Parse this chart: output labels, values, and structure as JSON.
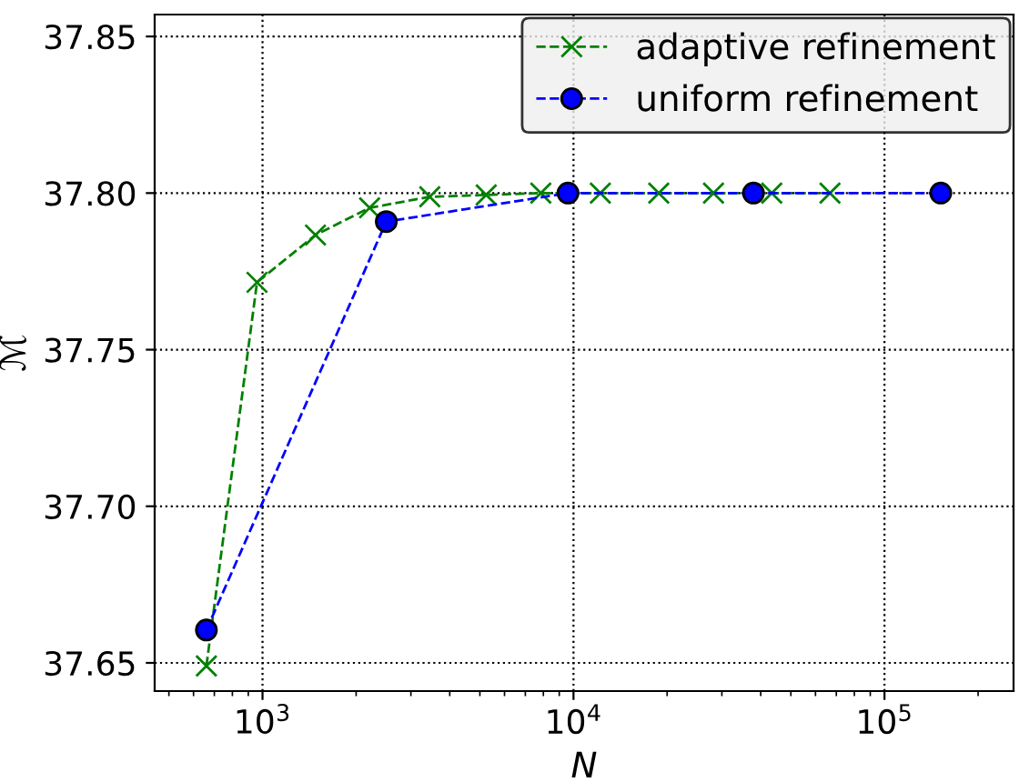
{
  "chart_data": {
    "type": "line",
    "xlabel": "N",
    "ylabel": "ℳ",
    "log": "x",
    "grid": true,
    "legend": "top right",
    "line_style": "dashed",
    "xlim": [
      450,
      260000
    ],
    "xticks": [
      {
        "value": 1000,
        "label": "10$^{3}$"
      },
      {
        "value": 10000,
        "label": "10$^{4}$"
      },
      {
        "value": 100000,
        "label": "10$^{5}$"
      }
    ],
    "ylim": [
      37.641,
      37.857
    ],
    "yticks": [
      {
        "value": 37.65,
        "label": "37.65"
      },
      {
        "value": 37.7,
        "label": "37.70"
      },
      {
        "value": 37.75,
        "label": "37.75"
      },
      {
        "value": 37.8,
        "label": "37.80"
      },
      {
        "value": 37.85,
        "label": "37.85"
      }
    ],
    "series": [
      {
        "name": "adaptive refinement",
        "color": "#008000",
        "marker": "cross",
        "x": [
          660,
          960,
          1480,
          2210,
          3450,
          5240,
          7850,
          12200,
          18800,
          28200,
          43400,
          66800
        ],
        "values": [
          37.649,
          37.7715,
          37.7866,
          37.7953,
          37.7988,
          37.7994,
          37.8,
          37.8,
          37.8,
          37.8,
          37.8,
          37.8
        ]
      },
      {
        "name": "uniform refinement",
        "color": "#0000ff",
        "marker": "circle",
        "x": [
          660,
          2500,
          9600,
          37900,
          151700
        ],
        "values": [
          37.6605,
          37.7909,
          37.8,
          37.8,
          37.8
        ]
      }
    ]
  }
}
